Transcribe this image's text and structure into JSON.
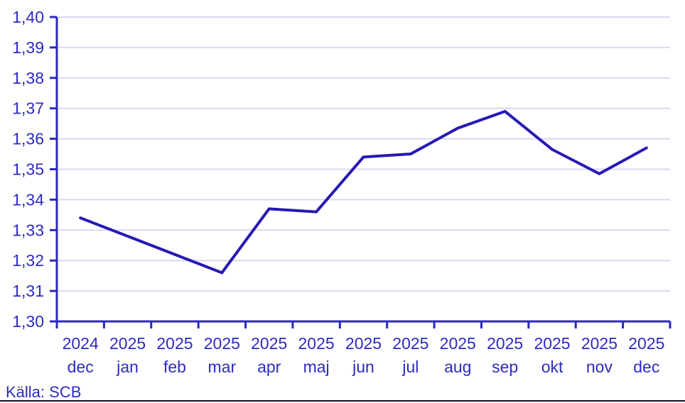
{
  "chart_data": {
    "type": "line",
    "title": "",
    "source": "Källa: SCB",
    "categories": [
      {
        "year": "2024",
        "month": "dec"
      },
      {
        "year": "2025",
        "month": "jan"
      },
      {
        "year": "2025",
        "month": "feb"
      },
      {
        "year": "2025",
        "month": "mar"
      },
      {
        "year": "2025",
        "month": "apr"
      },
      {
        "year": "2025",
        "month": "maj"
      },
      {
        "year": "2025",
        "month": "jun"
      },
      {
        "year": "2025",
        "month": "jul"
      },
      {
        "year": "2025",
        "month": "aug"
      },
      {
        "year": "2025",
        "month": "sep"
      },
      {
        "year": "2025",
        "month": "okt"
      },
      {
        "year": "2025",
        "month": "nov"
      },
      {
        "year": "2025",
        "month": "dec"
      }
    ],
    "values": [
      1.334,
      1.328,
      1.322,
      1.316,
      1.337,
      1.336,
      1.354,
      1.355,
      1.3635,
      1.369,
      1.3565,
      1.3485,
      1.357
    ],
    "y_ticks": [
      {
        "value": 1.3,
        "label": "1,30"
      },
      {
        "value": 1.31,
        "label": "1,31"
      },
      {
        "value": 1.32,
        "label": "1,32"
      },
      {
        "value": 1.33,
        "label": "1,33"
      },
      {
        "value": 1.34,
        "label": "1,34"
      },
      {
        "value": 1.35,
        "label": "1,35"
      },
      {
        "value": 1.36,
        "label": "1,36"
      },
      {
        "value": 1.37,
        "label": "1,37"
      },
      {
        "value": 1.38,
        "label": "1,38"
      },
      {
        "value": 1.39,
        "label": "1,39"
      },
      {
        "value": 1.4,
        "label": "1,40"
      }
    ],
    "ylim": [
      1.3,
      1.4
    ],
    "grid": true,
    "legend": "none",
    "colors": {
      "line": "#2619b3",
      "axis": "#2c28bb",
      "labels": "#2d2bbf",
      "gridline": "#d8d8f0",
      "source_text": "#2d2bbf",
      "bottom_bar": "#0c0c26",
      "background": "#ffffff"
    }
  }
}
